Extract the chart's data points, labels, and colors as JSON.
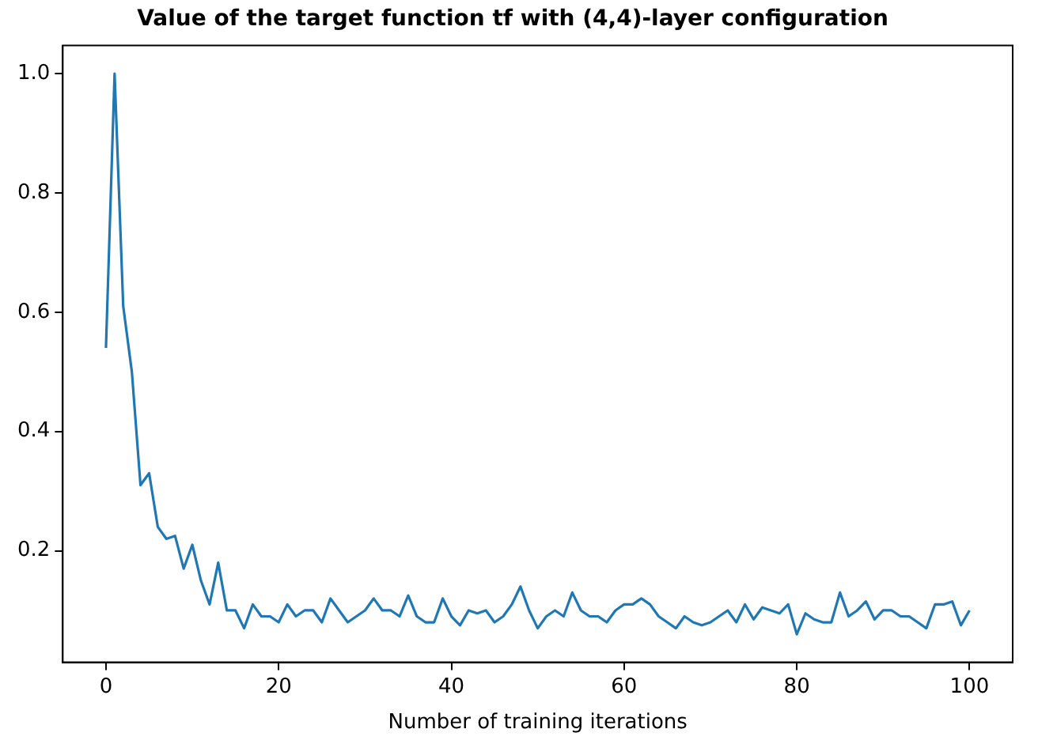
{
  "chart_data": {
    "type": "line",
    "title": "Value of the target function tf with (4,4)-layer configuration",
    "xlabel": "Number of training iterations",
    "x": [
      0,
      1,
      2,
      3,
      4,
      5,
      6,
      7,
      8,
      9,
      10,
      11,
      12,
      13,
      14,
      15,
      16,
      17,
      18,
      19,
      20,
      21,
      22,
      23,
      24,
      25,
      26,
      27,
      28,
      29,
      30,
      31,
      32,
      33,
      34,
      35,
      36,
      37,
      38,
      39,
      40,
      41,
      42,
      43,
      44,
      45,
      46,
      47,
      48,
      49,
      50,
      51,
      52,
      53,
      54,
      55,
      56,
      57,
      58,
      59,
      60,
      61,
      62,
      63,
      64,
      65,
      66,
      67,
      68,
      69,
      70,
      71,
      72,
      73,
      74,
      75,
      76,
      77,
      78,
      79,
      80,
      81,
      82,
      83,
      84,
      85,
      86,
      87,
      88,
      89,
      90,
      91,
      92,
      93,
      94,
      95,
      96,
      97,
      98,
      99,
      100
    ],
    "series": [
      {
        "color": "#1f77b4",
        "values": [
          0.54,
          1.0,
          0.61,
          0.5,
          0.31,
          0.33,
          0.24,
          0.22,
          0.225,
          0.17,
          0.21,
          0.15,
          0.11,
          0.18,
          0.1,
          0.1,
          0.07,
          0.11,
          0.09,
          0.09,
          0.08,
          0.11,
          0.09,
          0.1,
          0.1,
          0.08,
          0.12,
          0.1,
          0.08,
          0.09,
          0.1,
          0.12,
          0.1,
          0.1,
          0.09,
          0.125,
          0.09,
          0.08,
          0.08,
          0.12,
          0.09,
          0.075,
          0.1,
          0.095,
          0.1,
          0.08,
          0.09,
          0.11,
          0.14,
          0.1,
          0.07,
          0.09,
          0.1,
          0.09,
          0.13,
          0.1,
          0.09,
          0.09,
          0.08,
          0.1,
          0.11,
          0.11,
          0.12,
          0.11,
          0.09,
          0.08,
          0.07,
          0.09,
          0.08,
          0.075,
          0.08,
          0.09,
          0.1,
          0.08,
          0.11,
          0.085,
          0.105,
          0.1,
          0.095,
          0.11,
          0.06,
          0.095,
          0.085,
          0.08,
          0.08,
          0.13,
          0.09,
          0.1,
          0.115,
          0.085,
          0.1,
          0.1,
          0.09,
          0.09,
          0.08,
          0.07,
          0.11,
          0.11,
          0.115,
          0.075,
          0.1
        ]
      }
    ],
    "xlim": [
      -5,
      105
    ],
    "xticks": [
      0,
      20,
      40,
      60,
      80,
      100
    ],
    "ylim": [
      0.013,
      1.047
    ],
    "yticks": [
      {
        "value": 0.2,
        "label": "0.2"
      },
      {
        "value": 0.4,
        "label": "0.4"
      },
      {
        "value": 0.6,
        "label": "0.6"
      },
      {
        "value": 0.8,
        "label": "0.8"
      },
      {
        "value": 1.0,
        "label": "1.0"
      }
    ],
    "grid": false,
    "legend": false,
    "marker": "none",
    "line_style": "solid"
  }
}
